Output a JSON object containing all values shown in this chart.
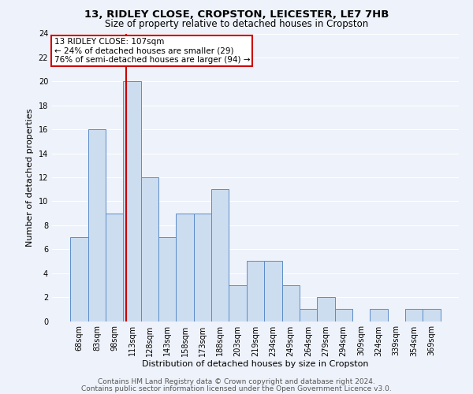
{
  "title_line1": "13, RIDLEY CLOSE, CROPSTON, LEICESTER, LE7 7HB",
  "title_line2": "Size of property relative to detached houses in Cropston",
  "xlabel": "Distribution of detached houses by size in Cropston",
  "ylabel": "Number of detached properties",
  "footnote1": "Contains HM Land Registry data © Crown copyright and database right 2024.",
  "footnote2": "Contains public sector information licensed under the Open Government Licence v3.0.",
  "bar_labels": [
    "68sqm",
    "83sqm",
    "98sqm",
    "113sqm",
    "128sqm",
    "143sqm",
    "158sqm",
    "173sqm",
    "188sqm",
    "203sqm",
    "219sqm",
    "234sqm",
    "249sqm",
    "264sqm",
    "279sqm",
    "294sqm",
    "309sqm",
    "324sqm",
    "339sqm",
    "354sqm",
    "369sqm"
  ],
  "bar_values": [
    7,
    16,
    9,
    20,
    12,
    7,
    9,
    9,
    11,
    3,
    5,
    5,
    3,
    1,
    2,
    1,
    0,
    1,
    0,
    1,
    1
  ],
  "bar_color": "#ccddf0",
  "bar_edge_color": "#5b8cc8",
  "annotation_box_text": "13 RIDLEY CLOSE: 107sqm\n← 24% of detached houses are smaller (29)\n76% of semi-detached houses are larger (94) →",
  "annotation_box_color": "#ffffff",
  "annotation_box_edge_color": "#cc0000",
  "vline_color": "#cc0000",
  "vline_x_index": 2.67,
  "ylim": [
    0,
    24
  ],
  "yticks": [
    0,
    2,
    4,
    6,
    8,
    10,
    12,
    14,
    16,
    18,
    20,
    22,
    24
  ],
  "background_color": "#eef2fa",
  "plot_bg_color": "#eef2fa",
  "grid_color": "#ffffff",
  "title1_fontsize": 9.5,
  "title2_fontsize": 8.5,
  "xlabel_fontsize": 8,
  "ylabel_fontsize": 8,
  "tick_fontsize": 7,
  "annotation_fontsize": 7.5,
  "footnote_fontsize": 6.5
}
